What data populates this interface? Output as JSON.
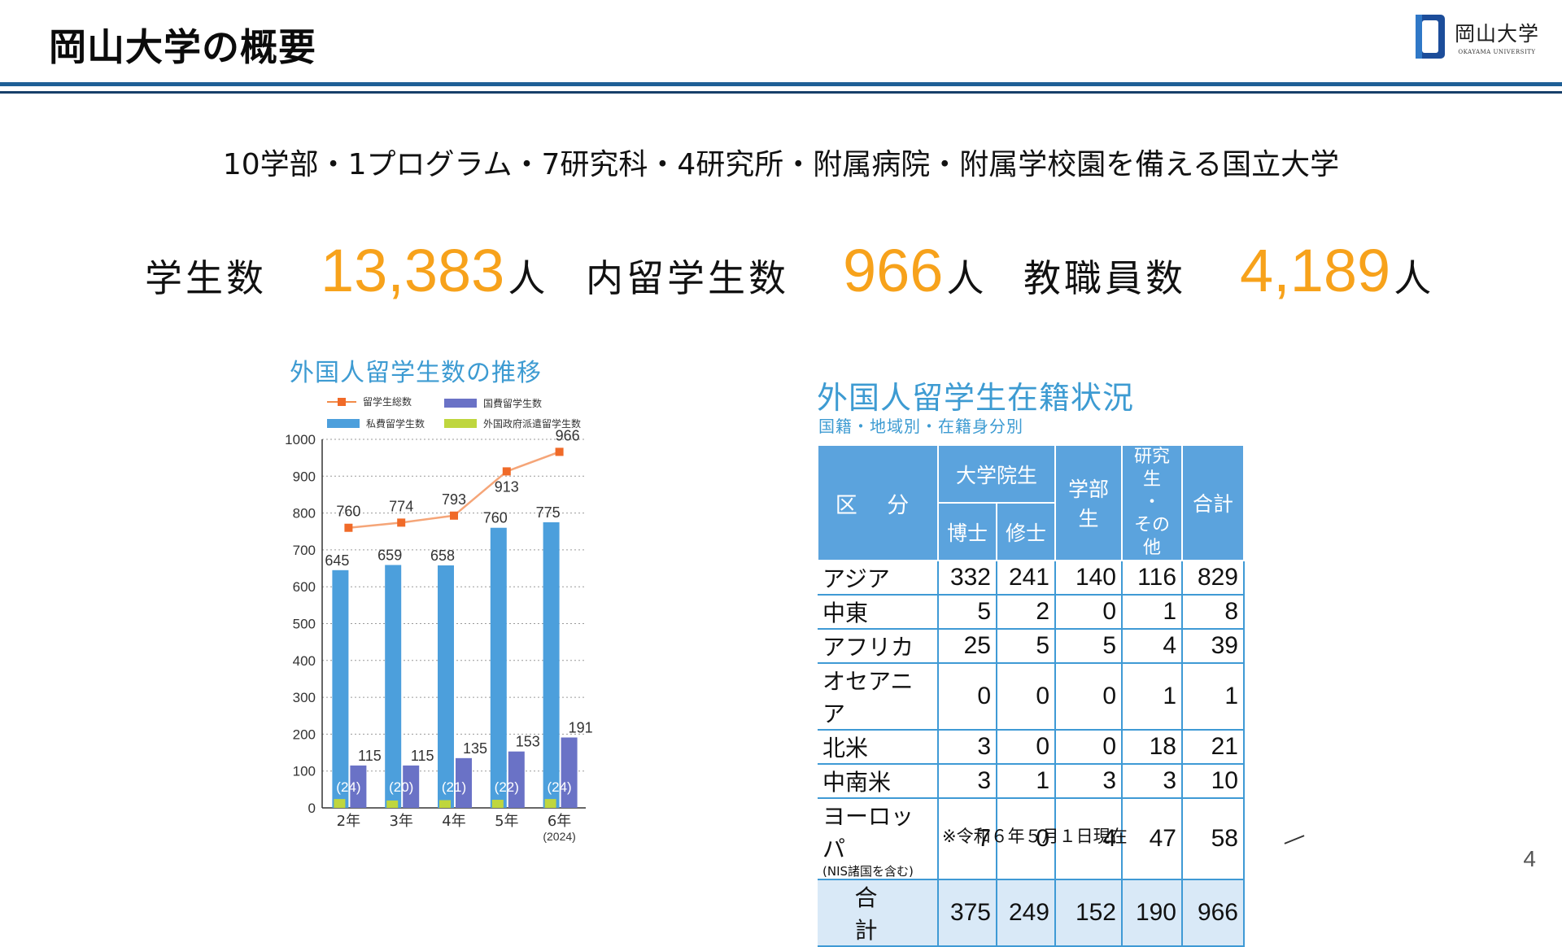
{
  "header": {
    "title": "岡山大学の概要",
    "logo_jp": "岡山大学",
    "logo_en": "OKAYAMA UNIVERSITY",
    "logo_icon": "okayama-university-emblem",
    "rule_color": "#1f5f96"
  },
  "subtitle": "10学部・1プログラム・7研究科・4研究所・附属病院・附属学校園を備える国立大学",
  "stats": [
    {
      "label": "学生数",
      "value": "13,383",
      "unit": "人"
    },
    {
      "label": "内留学生数",
      "value": "966",
      "unit": "人"
    },
    {
      "label": "教職員数",
      "value": "4,189",
      "unit": "人"
    }
  ],
  "accent_color": "#f7a21b",
  "chart_data": {
    "type": "bar",
    "title": "外国人留学生数の推移",
    "categories": [
      "2年",
      "3年",
      "4年",
      "5年",
      "6年"
    ],
    "category_notes": [
      "",
      "",
      "",
      "",
      "(2024)"
    ],
    "ylim": [
      0,
      1000
    ],
    "yticks": [
      0,
      100,
      200,
      300,
      400,
      500,
      600,
      700,
      800,
      900,
      1000
    ],
    "grid": true,
    "legend": [
      {
        "name": "留学生総数",
        "color": "#f06a28",
        "kind": "line"
      },
      {
        "name": "国費留学生数",
        "color": "#6a72c6",
        "kind": "bar"
      },
      {
        "name": "私費留学生数",
        "color": "#4c9fdc",
        "kind": "bar"
      },
      {
        "name": "外国政府派遣留学生数",
        "color": "#bfd63e",
        "kind": "bar"
      }
    ],
    "series": [
      {
        "name": "留学生総数",
        "type": "line",
        "color": "#f06a28",
        "values": [
          760,
          774,
          793,
          913,
          966
        ]
      },
      {
        "name": "私費留学生数",
        "type": "bar",
        "color": "#4c9fdc",
        "values": [
          645,
          659,
          658,
          760,
          775
        ]
      },
      {
        "name": "国費留学生数",
        "type": "bar",
        "color": "#6a72c6",
        "values": [
          115,
          115,
          135,
          153,
          191
        ]
      },
      {
        "name": "外国政府派遣留学生数",
        "type": "bar",
        "color": "#bfd63e",
        "values": [
          24,
          20,
          21,
          22,
          24
        ],
        "labels": [
          "(24)",
          "(20)",
          "(21)",
          "(22)",
          "(24)"
        ]
      }
    ]
  },
  "table": {
    "title": "外国人留学生在籍状況",
    "subtitle": "国籍・地域別・在籍身分別",
    "headers": {
      "region": "区 分",
      "graduate": "大学院生",
      "doctor": "博士",
      "master": "修士",
      "undergrad": "学部生",
      "research_top": "研究生",
      "research_dot": "・",
      "research_bottom": "その他",
      "total": "合計"
    },
    "rows": [
      {
        "region": "アジア",
        "note": "",
        "values": [
          "332",
          "241",
          "140",
          "116",
          "829"
        ]
      },
      {
        "region": "中東",
        "note": "",
        "values": [
          "5",
          "2",
          "0",
          "1",
          "8"
        ]
      },
      {
        "region": "アフリカ",
        "note": "",
        "values": [
          "25",
          "5",
          "5",
          "4",
          "39"
        ]
      },
      {
        "region": "オセアニア",
        "note": "",
        "values": [
          "0",
          "0",
          "0",
          "1",
          "1"
        ]
      },
      {
        "region": "北米",
        "note": "",
        "values": [
          "3",
          "0",
          "0",
          "18",
          "21"
        ]
      },
      {
        "region": "中南米",
        "note": "",
        "values": [
          "3",
          "1",
          "3",
          "3",
          "10"
        ]
      },
      {
        "region": "ヨーロッパ",
        "note": "(NIS諸国を含む)",
        "values": [
          "7",
          "0",
          "4",
          "47",
          "58"
        ]
      }
    ],
    "total_row": {
      "region": "合 計",
      "values": [
        "375",
        "249",
        "152",
        "190",
        "966"
      ]
    },
    "note": "※令和６年５月１日現在"
  },
  "page_number": "4"
}
